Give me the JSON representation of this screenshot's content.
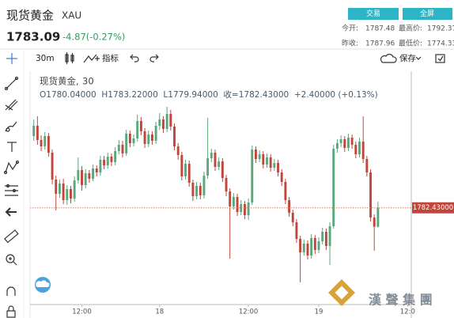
{
  "header": {
    "name": "现货黄金",
    "symbol": "XAU",
    "price": "1783.09",
    "change": "-4.87(-0.27%)",
    "buttons": [
      "交易",
      "全屏"
    ],
    "stats": [
      [
        "今开:",
        "1787.48",
        "最高价:",
        "1792.37"
      ],
      [
        "昨收:",
        "1787.96",
        "最低价:",
        "1774.33"
      ]
    ]
  },
  "toolbar": {
    "interval": "30m",
    "indicators": "指标",
    "save": "保存"
  },
  "watermark": "漢 聲 集 團",
  "chart_data": {
    "type": "candlestick",
    "legend_symbol": "现货黄金,",
    "legend_interval": "30",
    "legend_ohlc": "O1780.04000  H1783.22000  L1779.94000  收=1782.43000  +2.40000 (+0.13%)",
    "price_label": "1782.43000",
    "up_color": "#5aa77d",
    "down_color": "#c0453a",
    "price_line_color": "#e07a6a",
    "xlim": [
      -1,
      102
    ],
    "ylim": [
      1770.2,
      1799.2
    ],
    "xticks": [
      {
        "value": 13,
        "label": "12:00"
      },
      {
        "value": 34,
        "label": "18"
      },
      {
        "value": 58,
        "label": "12:00"
      },
      {
        "value": 77,
        "label": "19"
      },
      {
        "value": 101,
        "label": "12:0"
      }
    ],
    "open": [
      1791.5,
      1792.8,
      1791.0,
      1790.2,
      1791.5,
      1789.4,
      1786.0,
      1784.2,
      1785.5,
      1783.4,
      1784.8,
      1783.6,
      1785.9,
      1787.2,
      1785.3,
      1786.8,
      1786.1,
      1787.4,
      1786.9,
      1788.5,
      1787.8,
      1788.9,
      1788.2,
      1789.6,
      1790.4,
      1789.3,
      1791.8,
      1790.6,
      1791.2,
      1793.4,
      1792.1,
      1790.5,
      1791.7,
      1790.9,
      1792.8,
      1793.6,
      1792.4,
      1794.3,
      1792.7,
      1790.2,
      1789.1,
      1786.4,
      1788.0,
      1785.6,
      1783.9,
      1785.2,
      1784.0,
      1786.5,
      1788.7,
      1789.4,
      1787.6,
      1788.3,
      1786.2,
      1784.5,
      1782.6,
      1783.8,
      1781.9,
      1782.9,
      1781.5,
      1783.1,
      1789.8,
      1788.6,
      1789.2,
      1787.9,
      1788.8,
      1787.5,
      1788.1,
      1786.9,
      1785.7,
      1783.4,
      1781.8,
      1780.6,
      1778.5,
      1776.8,
      1777.9,
      1776.4,
      1778.6,
      1777.1,
      1778.2,
      1779.4,
      1777.6,
      1780.1,
      1789.9,
      1790.6,
      1791.1,
      1790.0,
      1791.3,
      1790.4,
      1789.2,
      1790.8,
      1788.6,
      1786.9,
      1781.2,
      1780.04
    ],
    "high": [
      1793.6,
      1794.0,
      1791.6,
      1792.0,
      1791.9,
      1789.8,
      1786.5,
      1786.0,
      1786.1,
      1785.3,
      1785.2,
      1786.4,
      1788.8,
      1787.7,
      1787.3,
      1787.2,
      1787.9,
      1787.8,
      1789.0,
      1789.0,
      1789.4,
      1789.3,
      1790.1,
      1791.0,
      1790.9,
      1792.3,
      1792.2,
      1791.7,
      1794.2,
      1793.9,
      1792.5,
      1792.2,
      1792.1,
      1793.3,
      1794.4,
      1794.0,
      1795.2,
      1794.8,
      1793.1,
      1790.6,
      1789.5,
      1788.5,
      1788.4,
      1786.0,
      1785.7,
      1785.6,
      1787.0,
      1793.8,
      1789.9,
      1789.8,
      1788.8,
      1788.7,
      1786.6,
      1784.9,
      1784.3,
      1784.2,
      1783.4,
      1783.3,
      1783.6,
      1790.3,
      1790.2,
      1789.7,
      1789.6,
      1789.3,
      1789.2,
      1788.6,
      1788.5,
      1787.3,
      1786.1,
      1783.8,
      1782.2,
      1781.0,
      1778.9,
      1778.4,
      1778.3,
      1779.1,
      1779.0,
      1778.7,
      1779.9,
      1779.8,
      1780.6,
      1790.4,
      1791.1,
      1791.6,
      1791.5,
      1791.8,
      1791.7,
      1790.8,
      1791.3,
      1794.0,
      1789.0,
      1787.3,
      1781.6,
      1783.22
    ],
    "low": [
      1790.9,
      1790.4,
      1789.6,
      1789.8,
      1788.9,
      1785.4,
      1782.1,
      1783.7,
      1782.9,
      1782.8,
      1783.0,
      1783.2,
      1785.5,
      1784.6,
      1784.9,
      1785.6,
      1785.8,
      1786.4,
      1786.5,
      1787.3,
      1787.4,
      1787.7,
      1787.8,
      1789.2,
      1788.8,
      1789.0,
      1790.1,
      1790.2,
      1790.8,
      1791.6,
      1790.0,
      1790.1,
      1790.4,
      1790.5,
      1792.3,
      1791.9,
      1792.0,
      1792.2,
      1789.7,
      1788.5,
      1785.9,
      1786.0,
      1785.1,
      1783.3,
      1783.5,
      1783.5,
      1783.6,
      1786.1,
      1788.2,
      1787.1,
      1787.2,
      1785.7,
      1783.9,
      1776.0,
      1782.2,
      1781.4,
      1781.5,
      1781.0,
      1780.9,
      1782.8,
      1788.1,
      1788.2,
      1787.4,
      1787.5,
      1787.0,
      1787.1,
      1786.4,
      1785.2,
      1782.9,
      1781.3,
      1780.1,
      1778.0,
      1773.0,
      1776.4,
      1775.9,
      1776.0,
      1776.6,
      1776.7,
      1777.8,
      1777.1,
      1775.2,
      1779.8,
      1789.4,
      1790.1,
      1789.5,
      1789.6,
      1789.9,
      1788.7,
      1788.8,
      1788.1,
      1786.4,
      1780.7,
      1777.0,
      1779.94
    ],
    "close": [
      1792.8,
      1791.0,
      1790.2,
      1791.5,
      1789.4,
      1786.0,
      1784.2,
      1785.5,
      1783.4,
      1784.8,
      1783.6,
      1785.9,
      1787.2,
      1785.3,
      1786.8,
      1786.1,
      1787.4,
      1786.9,
      1788.5,
      1787.8,
      1788.9,
      1788.2,
      1789.6,
      1790.4,
      1789.3,
      1791.8,
      1790.6,
      1791.2,
      1793.4,
      1792.1,
      1790.5,
      1791.7,
      1790.9,
      1792.8,
      1793.6,
      1792.4,
      1794.3,
      1792.7,
      1790.2,
      1789.1,
      1786.4,
      1788.0,
      1785.6,
      1783.9,
      1785.2,
      1784.0,
      1786.5,
      1788.7,
      1789.4,
      1787.6,
      1788.3,
      1786.2,
      1784.5,
      1782.6,
      1783.8,
      1781.9,
      1782.9,
      1781.5,
      1783.1,
      1789.8,
      1788.6,
      1789.2,
      1787.9,
      1788.8,
      1787.5,
      1788.1,
      1786.9,
      1785.7,
      1783.4,
      1781.8,
      1780.6,
      1778.5,
      1776.8,
      1777.9,
      1776.4,
      1778.6,
      1777.1,
      1778.2,
      1779.4,
      1777.6,
      1780.1,
      1789.9,
      1790.6,
      1791.1,
      1790.0,
      1791.3,
      1790.4,
      1789.2,
      1790.8,
      1788.6,
      1786.9,
      1781.2,
      1780.04,
      1782.43
    ]
  }
}
